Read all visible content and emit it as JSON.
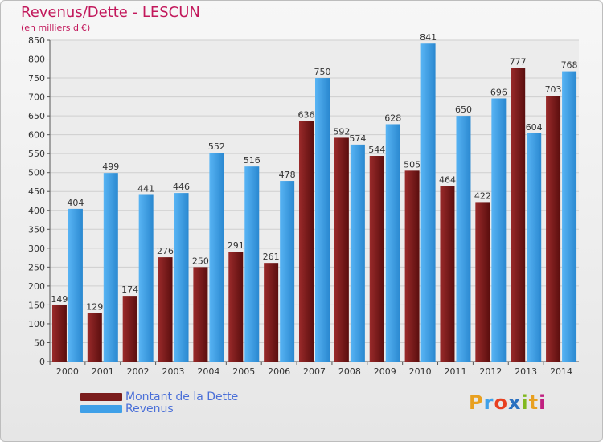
{
  "chart_data": {
    "type": "bar",
    "title": "Revenus/Dette - LESCUN",
    "subtitle": "(en milliers d'€)",
    "categories": [
      "2000",
      "2001",
      "2002",
      "2003",
      "2004",
      "2005",
      "2006",
      "2007",
      "2008",
      "2009",
      "2010",
      "2011",
      "2012",
      "2013",
      "2014"
    ],
    "series": [
      {
        "name": "Montant de la Dette",
        "color": "#7a1c1c",
        "values": [
          149,
          129,
          174,
          276,
          250,
          291,
          261,
          636,
          592,
          544,
          505,
          464,
          422,
          777,
          703
        ]
      },
      {
        "name": "Revenus",
        "color": "#3fa0e8",
        "values": [
          404,
          499,
          441,
          446,
          552,
          516,
          478,
          750,
          574,
          628,
          841,
          650,
          696,
          604,
          768
        ]
      }
    ],
    "ylim": [
      0,
      850
    ],
    "ytick_step": 50,
    "grid": true,
    "legend_position": "bottom-left"
  },
  "brand": {
    "letters": [
      "P",
      "r",
      "o",
      "x",
      "i",
      "t",
      "i"
    ],
    "colors": [
      "#e8a020",
      "#3fa0e8",
      "#e84020",
      "#2a70c0",
      "#80b820",
      "#e8a020",
      "#c02080"
    ]
  }
}
